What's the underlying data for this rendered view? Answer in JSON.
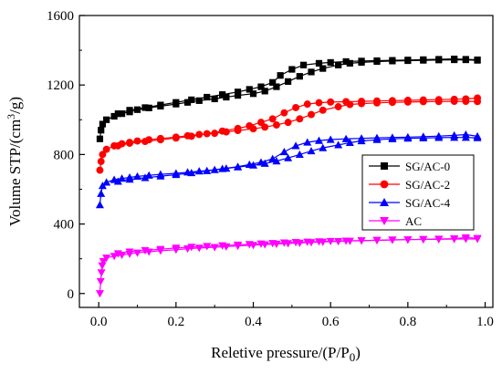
{
  "chart_data": {
    "type": "line",
    "xlabel": "Reletive pressure/(P/P",
    "xlabel_sub": "0",
    "xlabel_close": ")",
    "ylabel": "Volume STP/(cm",
    "ylabel_sup": "3",
    "ylabel_close": "/g)",
    "xlim": [
      -0.05,
      1.02
    ],
    "ylim": [
      -80,
      1600
    ],
    "xticks": [
      0.0,
      0.2,
      0.4,
      0.6,
      0.8,
      1.0
    ],
    "xtick_labels": [
      "0.0",
      "0.2",
      "0.4",
      "0.6",
      "0.8",
      "1.0"
    ],
    "yticks": [
      0,
      400,
      800,
      1200,
      1600
    ],
    "ytick_labels": [
      "0",
      "400",
      "800",
      "1200",
      "1600"
    ],
    "legend_position": "middle-right",
    "series": [
      {
        "name": "SG/AC-0",
        "color": "#000000",
        "marker": "square",
        "adsorption": [
          [
            0.003,
            890
          ],
          [
            0.006,
            940
          ],
          [
            0.01,
            975
          ],
          [
            0.02,
            1000
          ],
          [
            0.04,
            1020
          ],
          [
            0.06,
            1035
          ],
          [
            0.08,
            1045
          ],
          [
            0.1,
            1058
          ],
          [
            0.13,
            1068
          ],
          [
            0.16,
            1078
          ],
          [
            0.2,
            1090
          ],
          [
            0.23,
            1100
          ],
          [
            0.26,
            1110
          ],
          [
            0.3,
            1120
          ],
          [
            0.33,
            1130
          ],
          [
            0.36,
            1140
          ],
          [
            0.4,
            1150
          ],
          [
            0.43,
            1165
          ],
          [
            0.46,
            1190
          ],
          [
            0.49,
            1220
          ],
          [
            0.52,
            1250
          ],
          [
            0.55,
            1275
          ],
          [
            0.58,
            1295
          ],
          [
            0.62,
            1315
          ],
          [
            0.65,
            1325
          ],
          [
            0.68,
            1330
          ],
          [
            0.72,
            1335
          ],
          [
            0.76,
            1338
          ],
          [
            0.8,
            1340
          ],
          [
            0.84,
            1342
          ],
          [
            0.88,
            1344
          ],
          [
            0.92,
            1345
          ],
          [
            0.95,
            1345
          ],
          [
            0.98,
            1342
          ]
        ],
        "desorption": [
          [
            0.98,
            1345
          ],
          [
            0.95,
            1348
          ],
          [
            0.92,
            1350
          ],
          [
            0.88,
            1348
          ],
          [
            0.84,
            1346
          ],
          [
            0.8,
            1344
          ],
          [
            0.76,
            1342
          ],
          [
            0.72,
            1340
          ],
          [
            0.68,
            1338
          ],
          [
            0.64,
            1335
          ],
          [
            0.6,
            1330
          ],
          [
            0.57,
            1325
          ],
          [
            0.53,
            1315
          ],
          [
            0.5,
            1290
          ],
          [
            0.47,
            1255
          ],
          [
            0.45,
            1215
          ],
          [
            0.42,
            1190
          ],
          [
            0.39,
            1175
          ],
          [
            0.36,
            1160
          ],
          [
            0.32,
            1145
          ],
          [
            0.28,
            1130
          ],
          [
            0.24,
            1115
          ],
          [
            0.2,
            1100
          ],
          [
            0.16,
            1085
          ],
          [
            0.12,
            1070
          ],
          [
            0.08,
            1055
          ],
          [
            0.05,
            1035
          ]
        ]
      },
      {
        "name": "SG/AC-2",
        "color": "#ff0000",
        "marker": "circle",
        "adsorption": [
          [
            0.003,
            710
          ],
          [
            0.006,
            760
          ],
          [
            0.01,
            800
          ],
          [
            0.02,
            830
          ],
          [
            0.04,
            850
          ],
          [
            0.06,
            862
          ],
          [
            0.08,
            870
          ],
          [
            0.1,
            878
          ],
          [
            0.13,
            885
          ],
          [
            0.16,
            892
          ],
          [
            0.2,
            900
          ],
          [
            0.23,
            908
          ],
          [
            0.26,
            915
          ],
          [
            0.3,
            922
          ],
          [
            0.33,
            930
          ],
          [
            0.36,
            938
          ],
          [
            0.4,
            948
          ],
          [
            0.43,
            958
          ],
          [
            0.46,
            970
          ],
          [
            0.49,
            985
          ],
          [
            0.52,
            1005
          ],
          [
            0.55,
            1030
          ],
          [
            0.58,
            1055
          ],
          [
            0.62,
            1075
          ],
          [
            0.65,
            1088
          ],
          [
            0.68,
            1093
          ],
          [
            0.72,
            1097
          ],
          [
            0.76,
            1100
          ],
          [
            0.8,
            1102
          ],
          [
            0.84,
            1104
          ],
          [
            0.88,
            1105
          ],
          [
            0.92,
            1106
          ],
          [
            0.95,
            1106
          ],
          [
            0.98,
            1105
          ]
        ],
        "desorption": [
          [
            0.98,
            1125
          ],
          [
            0.95,
            1120
          ],
          [
            0.92,
            1118
          ],
          [
            0.88,
            1116
          ],
          [
            0.84,
            1114
          ],
          [
            0.8,
            1112
          ],
          [
            0.76,
            1110
          ],
          [
            0.72,
            1108
          ],
          [
            0.68,
            1106
          ],
          [
            0.64,
            1104
          ],
          [
            0.6,
            1102
          ],
          [
            0.57,
            1098
          ],
          [
            0.54,
            1090
          ],
          [
            0.51,
            1070
          ],
          [
            0.48,
            1040
          ],
          [
            0.45,
            1005
          ],
          [
            0.42,
            985
          ],
          [
            0.39,
            965
          ],
          [
            0.36,
            950
          ],
          [
            0.32,
            935
          ],
          [
            0.28,
            920
          ],
          [
            0.24,
            905
          ],
          [
            0.2,
            895
          ],
          [
            0.16,
            885
          ],
          [
            0.12,
            875
          ],
          [
            0.08,
            865
          ],
          [
            0.05,
            850
          ]
        ]
      },
      {
        "name": "SG/AC-4",
        "color": "#0000ff",
        "marker": "triangle-up",
        "adsorption": [
          [
            0.003,
            510
          ],
          [
            0.006,
            575
          ],
          [
            0.01,
            620
          ],
          [
            0.02,
            640
          ],
          [
            0.04,
            655
          ],
          [
            0.06,
            662
          ],
          [
            0.08,
            668
          ],
          [
            0.1,
            674
          ],
          [
            0.13,
            680
          ],
          [
            0.16,
            686
          ],
          [
            0.2,
            692
          ],
          [
            0.23,
            698
          ],
          [
            0.26,
            704
          ],
          [
            0.3,
            712
          ],
          [
            0.33,
            720
          ],
          [
            0.36,
            728
          ],
          [
            0.4,
            738
          ],
          [
            0.43,
            748
          ],
          [
            0.46,
            762
          ],
          [
            0.49,
            780
          ],
          [
            0.52,
            800
          ],
          [
            0.55,
            820
          ],
          [
            0.58,
            838
          ],
          [
            0.62,
            855
          ],
          [
            0.65,
            868
          ],
          [
            0.68,
            878
          ],
          [
            0.72,
            885
          ],
          [
            0.76,
            890
          ],
          [
            0.8,
            893
          ],
          [
            0.84,
            895
          ],
          [
            0.88,
            897
          ],
          [
            0.92,
            898
          ],
          [
            0.95,
            898
          ],
          [
            0.98,
            896
          ]
        ],
        "desorption": [
          [
            0.98,
            905
          ],
          [
            0.95,
            915
          ],
          [
            0.92,
            910
          ],
          [
            0.88,
            906
          ],
          [
            0.84,
            903
          ],
          [
            0.8,
            900
          ],
          [
            0.76,
            898
          ],
          [
            0.72,
            896
          ],
          [
            0.68,
            893
          ],
          [
            0.64,
            890
          ],
          [
            0.6,
            886
          ],
          [
            0.57,
            880
          ],
          [
            0.54,
            870
          ],
          [
            0.51,
            850
          ],
          [
            0.48,
            815
          ],
          [
            0.45,
            775
          ],
          [
            0.42,
            755
          ],
          [
            0.39,
            742
          ],
          [
            0.36,
            730
          ],
          [
            0.32,
            718
          ],
          [
            0.28,
            706
          ],
          [
            0.24,
            694
          ],
          [
            0.2,
            684
          ],
          [
            0.16,
            675
          ],
          [
            0.12,
            666
          ],
          [
            0.08,
            657
          ],
          [
            0.05,
            645
          ]
        ]
      },
      {
        "name": "AC",
        "color": "#ff00ff",
        "marker": "triangle-down",
        "adsorption": [
          [
            0.003,
            0
          ],
          [
            0.005,
            70
          ],
          [
            0.007,
            120
          ],
          [
            0.009,
            160
          ],
          [
            0.012,
            185
          ],
          [
            0.02,
            205
          ],
          [
            0.04,
            215
          ],
          [
            0.06,
            222
          ],
          [
            0.08,
            228
          ],
          [
            0.1,
            234
          ],
          [
            0.13,
            240
          ],
          [
            0.16,
            246
          ],
          [
            0.2,
            252
          ],
          [
            0.23,
            258
          ],
          [
            0.26,
            262
          ],
          [
            0.3,
            266
          ],
          [
            0.33,
            270
          ],
          [
            0.36,
            274
          ],
          [
            0.4,
            278
          ],
          [
            0.43,
            282
          ],
          [
            0.46,
            285
          ],
          [
            0.49,
            288
          ],
          [
            0.52,
            291
          ],
          [
            0.55,
            294
          ],
          [
            0.58,
            297
          ],
          [
            0.62,
            300
          ],
          [
            0.65,
            302
          ],
          [
            0.68,
            304
          ],
          [
            0.72,
            306
          ],
          [
            0.76,
            308
          ],
          [
            0.8,
            310
          ],
          [
            0.84,
            311
          ],
          [
            0.88,
            312
          ],
          [
            0.92,
            313
          ],
          [
            0.95,
            314
          ],
          [
            0.98,
            314
          ]
        ],
        "desorption": [
          [
            0.98,
            318
          ],
          [
            0.95,
            322
          ],
          [
            0.92,
            316
          ],
          [
            0.88,
            314
          ],
          [
            0.84,
            312
          ],
          [
            0.8,
            310
          ],
          [
            0.76,
            309
          ],
          [
            0.72,
            307
          ],
          [
            0.68,
            305
          ],
          [
            0.64,
            303
          ],
          [
            0.6,
            301
          ],
          [
            0.57,
            299
          ],
          [
            0.54,
            297
          ],
          [
            0.51,
            295
          ],
          [
            0.48,
            292
          ],
          [
            0.45,
            289
          ],
          [
            0.42,
            286
          ],
          [
            0.39,
            283
          ],
          [
            0.36,
            280
          ],
          [
            0.32,
            276
          ],
          [
            0.28,
            272
          ],
          [
            0.24,
            267
          ],
          [
            0.2,
            262
          ],
          [
            0.16,
            255
          ],
          [
            0.12,
            248
          ],
          [
            0.08,
            240
          ],
          [
            0.05,
            230
          ]
        ]
      }
    ]
  }
}
